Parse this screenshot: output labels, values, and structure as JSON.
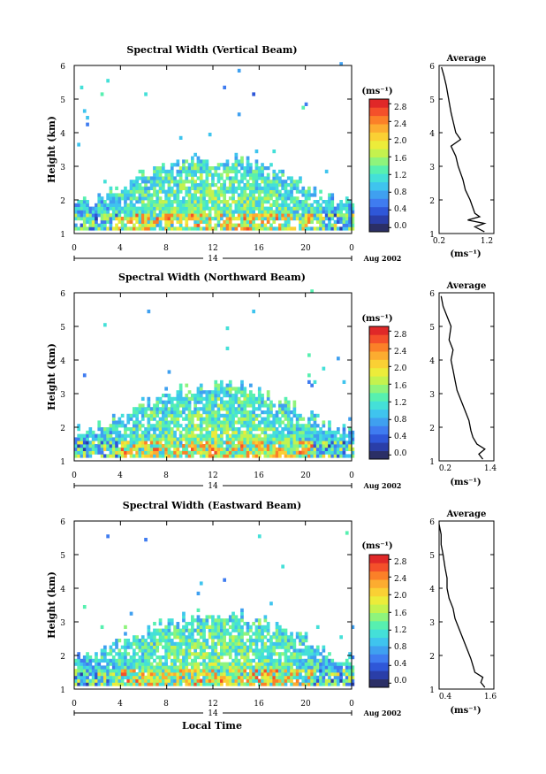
{
  "panels": [
    {
      "title": "Spectral Width (Vertical Beam)",
      "ylabel": "Height (km)",
      "yticks": [
        "1",
        "2",
        "3",
        "4",
        "5",
        "6"
      ],
      "xticks": [
        "0",
        "4",
        "8",
        "12",
        "16",
        "20",
        "0"
      ],
      "day_label": "14",
      "date_label": "Aug 2002",
      "colorbar": {
        "unit": "(ms⁻¹)",
        "ticks": [
          "0.0",
          "0.4",
          "0.8",
          "1.2",
          "1.6",
          "2.0",
          "2.4",
          "2.8"
        ],
        "min": 0.0,
        "max": 3.0
      },
      "avg": {
        "title": "Average",
        "xlabel": "(ms⁻¹)",
        "xticks": [
          "0.2",
          "1.2"
        ],
        "xlim": [
          0.2,
          1.2
        ],
        "ylim": [
          1,
          6
        ]
      }
    },
    {
      "title": "Spectral Width (Northward Beam)",
      "ylabel": "Height (km)",
      "yticks": [
        "1",
        "2",
        "3",
        "4",
        "5",
        "6"
      ],
      "xticks": [
        "0",
        "4",
        "8",
        "12",
        "16",
        "20",
        "0"
      ],
      "day_label": "14",
      "date_label": "Aug 2002",
      "colorbar": {
        "unit": "(ms⁻¹)",
        "ticks": [
          "0.0",
          "0.4",
          "0.8",
          "1.2",
          "1.6",
          "2.0",
          "2.4",
          "2.8"
        ],
        "min": 0.0,
        "max": 3.0
      },
      "avg": {
        "title": "Average",
        "xlabel": "(ms⁻¹)",
        "xticks": [
          "0.2",
          "1.4"
        ],
        "xlim": [
          0.2,
          1.4
        ],
        "ylim": [
          1,
          6
        ]
      }
    },
    {
      "title": "Spectral Width (Eastward Beam)",
      "ylabel": "Height (km)",
      "yticks": [
        "1",
        "2",
        "3",
        "4",
        "5",
        "6"
      ],
      "xticks": [
        "0",
        "4",
        "8",
        "12",
        "16",
        "20",
        "0"
      ],
      "day_label": "14",
      "date_label": "Aug 2002",
      "xlabel": "Local Time",
      "colorbar": {
        "unit": "(ms⁻¹)",
        "ticks": [
          "0.0",
          "0.4",
          "0.8",
          "1.2",
          "1.6",
          "2.0",
          "2.4",
          "2.8"
        ],
        "min": 0.0,
        "max": 3.0
      },
      "avg": {
        "title": "Average",
        "xlabel": "(ms⁻¹)",
        "xticks": [
          "0.4",
          "1.6"
        ],
        "xlim": [
          0.4,
          1.6
        ],
        "ylim": [
          1,
          6
        ]
      }
    }
  ],
  "colors": {
    "scale": [
      "#2b2f66",
      "#2a3ea8",
      "#2f57d8",
      "#3f7cf0",
      "#3fa0f0",
      "#3fc4ee",
      "#44e0d8",
      "#57f0b0",
      "#8ef47c",
      "#c4f24e",
      "#ecec3a",
      "#fad034",
      "#fcac30",
      "#fb8028",
      "#f4502a",
      "#e02828"
    ]
  },
  "chart_data": [
    {
      "type": "heatmap",
      "title": "Spectral Width (Vertical Beam)",
      "xlabel": "",
      "ylabel": "Height (km)",
      "xlim": [
        0,
        24
      ],
      "ylim": [
        1,
        6
      ],
      "value_units": "ms⁻¹",
      "vlim": [
        0.0,
        3.0
      ],
      "day": "14",
      "date": "Aug 2002",
      "profile": {
        "title": "Average",
        "heights": [
          1.05,
          1.2,
          1.3,
          1.4,
          1.5,
          1.6,
          1.8,
          2.0,
          2.3,
          2.6,
          3.0,
          3.3,
          3.6,
          3.8,
          4.0,
          4.3,
          4.6,
          5.0,
          5.4,
          5.7,
          5.95
        ],
        "values": [
          1.15,
          0.95,
          1.15,
          0.8,
          1.05,
          0.95,
          0.9,
          0.85,
          0.75,
          0.7,
          0.6,
          0.55,
          0.45,
          0.65,
          0.55,
          0.5,
          0.45,
          0.4,
          0.35,
          0.3,
          0.25
        ]
      }
    },
    {
      "type": "heatmap",
      "title": "Spectral Width (Northward Beam)",
      "xlabel": "",
      "ylabel": "Height (km)",
      "xlim": [
        0,
        24
      ],
      "ylim": [
        1,
        6
      ],
      "value_units": "ms⁻¹",
      "vlim": [
        0.0,
        3.0
      ],
      "day": "14",
      "date": "Aug 2002",
      "profile": {
        "title": "Average",
        "heights": [
          1.05,
          1.2,
          1.35,
          1.5,
          1.7,
          1.9,
          2.2,
          2.5,
          2.8,
          3.1,
          3.4,
          3.7,
          4.0,
          4.3,
          4.6,
          5.0,
          5.3,
          5.6,
          5.9
        ],
        "values": [
          1.3,
          1.2,
          1.35,
          1.15,
          1.05,
          1.0,
          0.95,
          0.85,
          0.75,
          0.65,
          0.6,
          0.55,
          0.5,
          0.55,
          0.45,
          0.5,
          0.4,
          0.3,
          0.25
        ]
      }
    },
    {
      "type": "heatmap",
      "title": "Spectral Width (Eastward Beam)",
      "xlabel": "Local Time",
      "ylabel": "Height (km)",
      "xlim": [
        0,
        24
      ],
      "ylim": [
        1,
        6
      ],
      "value_units": "ms⁻¹",
      "vlim": [
        0.0,
        3.0
      ],
      "day": "14",
      "date": "Aug 2002",
      "profile": {
        "title": "Average",
        "heights": [
          1.05,
          1.2,
          1.35,
          1.5,
          1.7,
          1.9,
          2.2,
          2.5,
          2.8,
          3.1,
          3.4,
          3.7,
          4.0,
          4.3,
          4.6,
          5.0,
          5.3,
          5.6,
          5.9
        ],
        "values": [
          1.55,
          1.45,
          1.5,
          1.3,
          1.25,
          1.2,
          1.1,
          1.0,
          0.9,
          0.8,
          0.75,
          0.65,
          0.6,
          0.6,
          0.55,
          0.5,
          0.45,
          0.45,
          0.4
        ]
      }
    }
  ]
}
